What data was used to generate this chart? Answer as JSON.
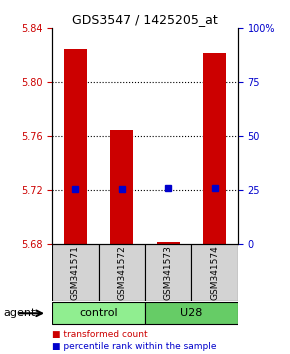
{
  "title": "GDS3547 / 1425205_at",
  "samples": [
    "GSM341571",
    "GSM341572",
    "GSM341573",
    "GSM341574"
  ],
  "bar_values": [
    5.825,
    5.765,
    5.682,
    5.822
  ],
  "bar_base": 5.68,
  "blue_values": [
    5.721,
    5.721,
    5.722,
    5.722
  ],
  "groups": [
    {
      "label": "control",
      "samples": [
        0,
        1
      ],
      "color": "#90ee90"
    },
    {
      "label": "U28",
      "samples": [
        2,
        3
      ],
      "color": "#66cc66"
    }
  ],
  "ylim": [
    5.68,
    5.84
  ],
  "yticks_left": [
    5.68,
    5.72,
    5.76,
    5.8,
    5.84
  ],
  "yticks_right": [
    0,
    25,
    50,
    75,
    100
  ],
  "right_ylim": [
    0,
    100
  ],
  "bar_color": "#cc0000",
  "blue_color": "#0000cc",
  "grid_color": "#000000",
  "bar_width": 0.5,
  "agent_label": "agent",
  "legend_items": [
    {
      "color": "#cc0000",
      "label": "transformed count"
    },
    {
      "color": "#0000cc",
      "label": "percentile rank within the sample"
    }
  ],
  "title_color": "#000000",
  "left_tick_color": "#cc0000",
  "right_tick_color": "#0000cc"
}
